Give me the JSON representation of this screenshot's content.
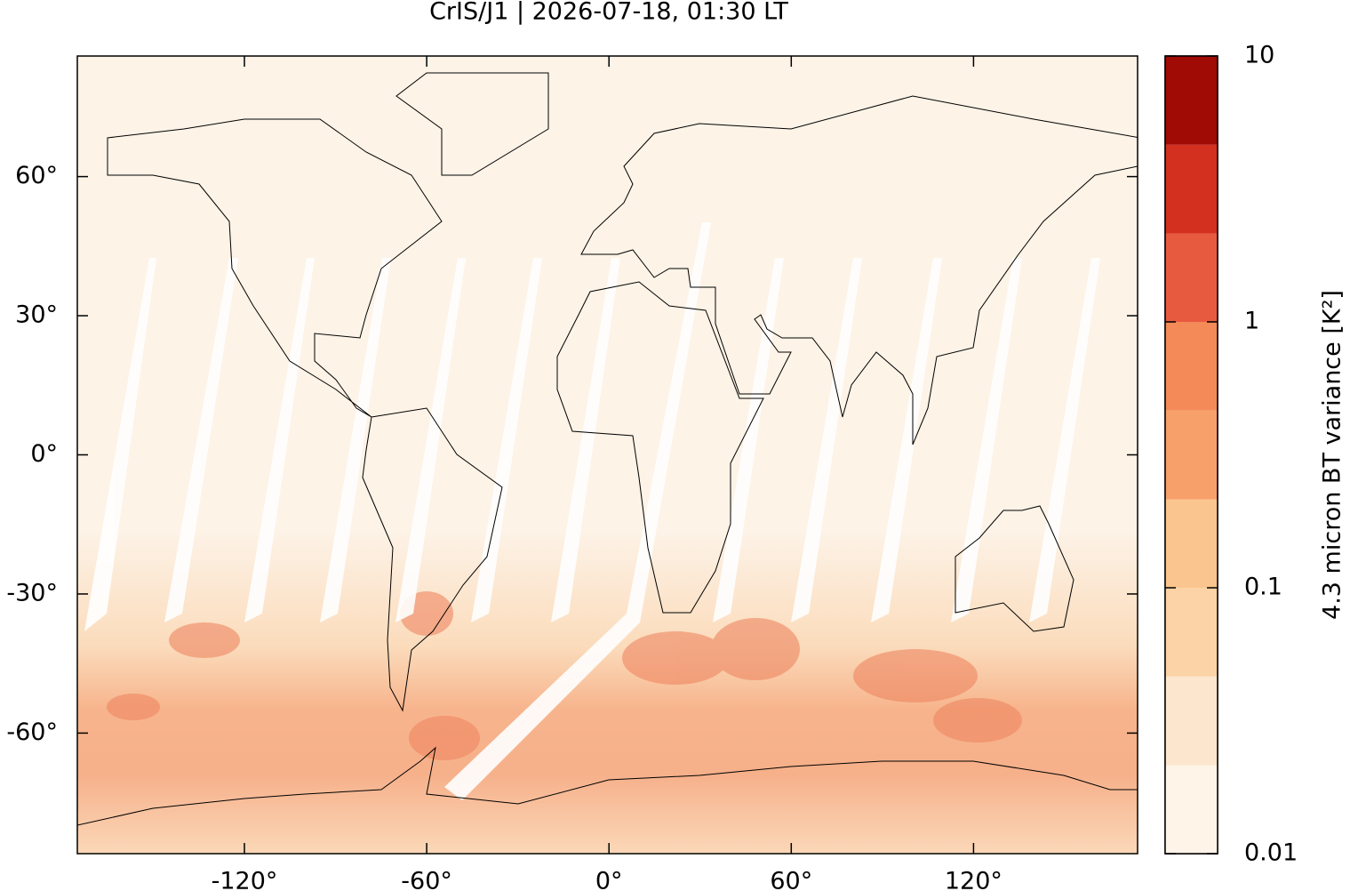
{
  "chart_data": {
    "type": "map",
    "title": "CrIS/J1 | 2026-07-18, 01:30 LT",
    "xlim": [
      -175,
      174
    ],
    "ylim": [
      -86,
      86
    ],
    "xticks": [
      {
        "value": -120,
        "label": "-120°"
      },
      {
        "value": -60,
        "label": "-60°"
      },
      {
        "value": 0,
        "label": "0°"
      },
      {
        "value": 60,
        "label": "60°"
      },
      {
        "value": 120,
        "label": "120°"
      }
    ],
    "yticks": [
      {
        "value": -60,
        "label": "-60°"
      },
      {
        "value": -30,
        "label": "-30°"
      },
      {
        "value": 0,
        "label": "0°"
      },
      {
        "value": 30,
        "label": "30°"
      },
      {
        "value": 60,
        "label": "60°"
      }
    ],
    "colorbar": {
      "label": "4.3 micron BT variance [K²]",
      "scale": "log",
      "lim": [
        0.01,
        10
      ],
      "ticks": [
        0.01,
        0.1,
        1,
        10
      ],
      "levels": [
        0.01,
        0.0215,
        0.0464,
        0.1,
        0.215,
        0.464,
        1,
        2.15,
        4.64,
        10
      ],
      "colors": [
        "#fef4e8",
        "#fce6cd",
        "#fbd3a6",
        "#fac58e",
        "#f7a06a",
        "#f38a58",
        "#e85a40",
        "#d4301f",
        "#a00b05"
      ]
    }
  }
}
